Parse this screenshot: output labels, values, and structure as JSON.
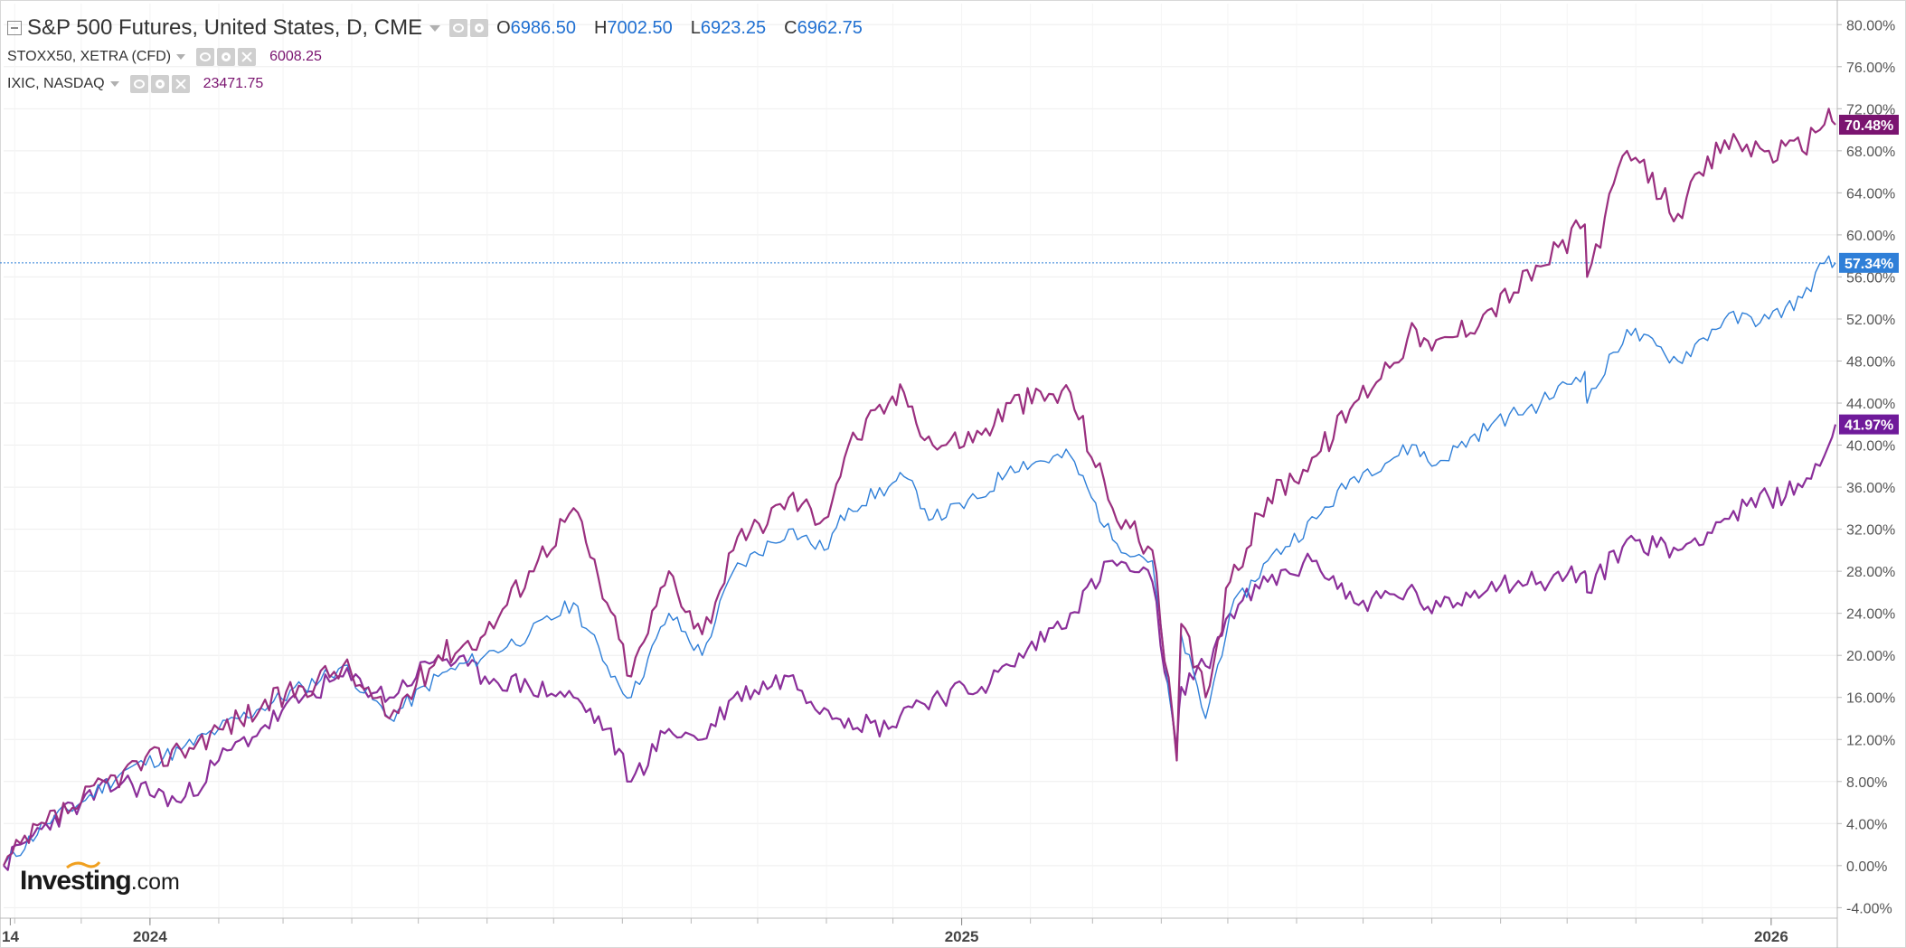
{
  "legend": {
    "main": {
      "title": "S&P 500 Futures, United States, D, CME",
      "open_label": "O",
      "open": "6986.50",
      "high_label": "H",
      "high": "7002.50",
      "low_label": "L",
      "low": "6923.25",
      "close_label": "C",
      "close": "6962.75"
    },
    "compare": [
      {
        "label": "STOXX50, XETRA (CFD)",
        "value": "6008.25"
      },
      {
        "label": "IXIC, NASDAQ",
        "value": "23471.75"
      }
    ]
  },
  "logo": {
    "text": "Investing",
    "suffix": ".com"
  },
  "colors": {
    "sp500": "#2f7fd8",
    "stoxx50": "#8b2f9a",
    "ixic": "#9a2f7f",
    "grid": "#eeeeee",
    "axis": "#b8b8b8",
    "badge_sp500": "#2f7fd8",
    "badge_stoxx50": "#6f1a9a",
    "badge_ixic": "#7a1470"
  },
  "chart_data": {
    "type": "line",
    "ylim": [
      -5,
      82
    ],
    "y_ticks": [
      "-4.00%",
      "0.00%",
      "4.00%",
      "8.00%",
      "12.00%",
      "16.00%",
      "20.00%",
      "24.00%",
      "28.00%",
      "32.00%",
      "36.00%",
      "40.00%",
      "44.00%",
      "48.00%",
      "52.00%",
      "56.00%",
      "60.00%",
      "64.00%",
      "68.00%",
      "72.00%",
      "76.00%",
      "80.00%"
    ],
    "y_tick_values": [
      -4,
      0,
      4,
      8,
      12,
      16,
      20,
      24,
      28,
      32,
      36,
      40,
      44,
      48,
      52,
      56,
      60,
      64,
      68,
      72,
      76,
      80
    ],
    "x_labels": [
      {
        "text": "14",
        "date": "2023-10-30"
      },
      {
        "text": "2024",
        "date": "2024-01-01"
      },
      {
        "text": "2025",
        "date": "2025-01-01"
      },
      {
        "text": "2026",
        "date": "2026-01-01"
      }
    ],
    "x_range": [
      "2023-10-27",
      "2026-01-30"
    ],
    "current_line_value": 57.34,
    "series": [
      {
        "key": "sp500",
        "name": "S&P 500 Futures",
        "last_label": "57.34%",
        "points": [
          [
            "2023-10-27",
            0
          ],
          [
            "2023-11-15",
            4
          ],
          [
            "2023-12-01",
            6
          ],
          [
            "2023-12-20",
            9
          ],
          [
            "2024-01-15",
            11
          ],
          [
            "2024-02-01",
            13
          ],
          [
            "2024-02-20",
            15
          ],
          [
            "2024-03-10",
            17
          ],
          [
            "2024-03-28",
            19
          ],
          [
            "2024-04-18",
            14
          ],
          [
            "2024-05-10",
            18
          ],
          [
            "2024-05-31",
            20
          ],
          [
            "2024-06-20",
            22
          ],
          [
            "2024-07-10",
            25
          ],
          [
            "2024-07-25",
            19
          ],
          [
            "2024-08-05",
            16
          ],
          [
            "2024-08-22",
            24
          ],
          [
            "2024-09-06",
            20
          ],
          [
            "2024-09-20",
            28
          ],
          [
            "2024-10-15",
            32
          ],
          [
            "2024-10-31",
            30
          ],
          [
            "2024-11-11",
            34
          ],
          [
            "2024-11-29",
            36
          ],
          [
            "2024-12-06",
            37
          ],
          [
            "2024-12-19",
            33
          ],
          [
            "2025-01-10",
            35
          ],
          [
            "2025-01-23",
            38
          ],
          [
            "2025-02-19",
            39
          ],
          [
            "2025-03-10",
            31
          ],
          [
            "2025-03-28",
            29
          ],
          [
            "2025-04-08",
            10
          ],
          [
            "2025-04-10",
            22
          ],
          [
            "2025-04-21",
            14
          ],
          [
            "2025-05-02",
            24
          ],
          [
            "2025-05-19",
            29
          ],
          [
            "2025-06-10",
            33
          ],
          [
            "2025-06-27",
            37
          ],
          [
            "2025-07-25",
            40
          ],
          [
            "2025-08-01",
            38
          ],
          [
            "2025-08-28",
            42
          ],
          [
            "2025-09-19",
            44
          ],
          [
            "2025-10-09",
            47
          ],
          [
            "2025-10-10",
            44
          ],
          [
            "2025-10-28",
            51
          ],
          [
            "2025-11-20",
            48
          ],
          [
            "2025-12-11",
            52
          ],
          [
            "2025-12-31",
            52
          ],
          [
            "2026-01-15",
            54
          ],
          [
            "2026-01-27",
            58
          ],
          [
            "2026-01-30",
            57.34
          ]
        ]
      },
      {
        "key": "stoxx50",
        "name": "STOXX50, XETRA (CFD)",
        "last_label": "41.97%",
        "points": [
          [
            "2023-10-27",
            0
          ],
          [
            "2023-11-15",
            4
          ],
          [
            "2023-12-01",
            6
          ],
          [
            "2023-12-20",
            8
          ],
          [
            "2024-01-15",
            6
          ],
          [
            "2024-02-01",
            10
          ],
          [
            "2024-02-20",
            13
          ],
          [
            "2024-03-10",
            16
          ],
          [
            "2024-03-28",
            18
          ],
          [
            "2024-04-18",
            16
          ],
          [
            "2024-05-10",
            20
          ],
          [
            "2024-05-31",
            18
          ],
          [
            "2024-06-20",
            17
          ],
          [
            "2024-07-10",
            16
          ],
          [
            "2024-07-25",
            13
          ],
          [
            "2024-08-05",
            8
          ],
          [
            "2024-08-22",
            13
          ],
          [
            "2024-09-06",
            12
          ],
          [
            "2024-09-20",
            16
          ],
          [
            "2024-10-15",
            18
          ],
          [
            "2024-10-31",
            15
          ],
          [
            "2024-11-11",
            14
          ],
          [
            "2024-11-29",
            13
          ],
          [
            "2024-12-06",
            15
          ],
          [
            "2024-12-19",
            16
          ],
          [
            "2025-01-10",
            17
          ],
          [
            "2025-01-23",
            19
          ],
          [
            "2025-02-19",
            24
          ],
          [
            "2025-03-10",
            29
          ],
          [
            "2025-03-28",
            27
          ],
          [
            "2025-04-08",
            11
          ],
          [
            "2025-04-10",
            17
          ],
          [
            "2025-04-21",
            19
          ],
          [
            "2025-05-02",
            24
          ],
          [
            "2025-05-19",
            27
          ],
          [
            "2025-06-10",
            29
          ],
          [
            "2025-06-27",
            25
          ],
          [
            "2025-07-25",
            26
          ],
          [
            "2025-08-01",
            24
          ],
          [
            "2025-08-28",
            27
          ],
          [
            "2025-09-19",
            27
          ],
          [
            "2025-10-09",
            28
          ],
          [
            "2025-10-10",
            26
          ],
          [
            "2025-10-28",
            31
          ],
          [
            "2025-11-20",
            30
          ],
          [
            "2025-12-11",
            33
          ],
          [
            "2025-12-31",
            35
          ],
          [
            "2026-01-15",
            36
          ],
          [
            "2026-01-27",
            40
          ],
          [
            "2026-01-30",
            41.97
          ]
        ]
      },
      {
        "key": "ixic",
        "name": "IXIC, NASDAQ",
        "last_label": "70.48%",
        "points": [
          [
            "2023-10-27",
            0
          ],
          [
            "2023-11-15",
            4
          ],
          [
            "2023-12-01",
            6
          ],
          [
            "2023-12-20",
            9
          ],
          [
            "2024-01-15",
            11
          ],
          [
            "2024-02-01",
            13
          ],
          [
            "2024-02-20",
            15
          ],
          [
            "2024-03-10",
            17
          ],
          [
            "2024-03-28",
            19
          ],
          [
            "2024-04-18",
            14
          ],
          [
            "2024-05-10",
            20
          ],
          [
            "2024-05-31",
            22
          ],
          [
            "2024-06-20",
            28
          ],
          [
            "2024-07-10",
            34
          ],
          [
            "2024-07-25",
            25
          ],
          [
            "2024-08-05",
            18
          ],
          [
            "2024-08-22",
            28
          ],
          [
            "2024-09-06",
            22
          ],
          [
            "2024-09-20",
            30
          ],
          [
            "2024-10-15",
            35
          ],
          [
            "2024-10-31",
            33
          ],
          [
            "2024-11-11",
            40
          ],
          [
            "2024-11-29",
            44
          ],
          [
            "2024-12-06",
            45
          ],
          [
            "2024-12-19",
            40
          ],
          [
            "2025-01-10",
            41
          ],
          [
            "2025-01-23",
            44
          ],
          [
            "2025-02-19",
            45
          ],
          [
            "2025-03-10",
            34
          ],
          [
            "2025-03-28",
            30
          ],
          [
            "2025-04-08",
            10
          ],
          [
            "2025-04-10",
            23
          ],
          [
            "2025-04-21",
            16
          ],
          [
            "2025-05-02",
            27
          ],
          [
            "2025-05-19",
            35
          ],
          [
            "2025-06-10",
            39
          ],
          [
            "2025-06-27",
            44
          ],
          [
            "2025-07-25",
            51
          ],
          [
            "2025-08-01",
            49
          ],
          [
            "2025-08-28",
            53
          ],
          [
            "2025-09-19",
            57
          ],
          [
            "2025-10-09",
            61
          ],
          [
            "2025-10-10",
            56
          ],
          [
            "2025-10-28",
            68
          ],
          [
            "2025-11-20",
            62
          ],
          [
            "2025-12-11",
            69
          ],
          [
            "2025-12-31",
            68
          ],
          [
            "2026-01-15",
            68
          ],
          [
            "2026-01-27",
            72
          ],
          [
            "2026-01-30",
            70.48
          ]
        ]
      }
    ]
  }
}
